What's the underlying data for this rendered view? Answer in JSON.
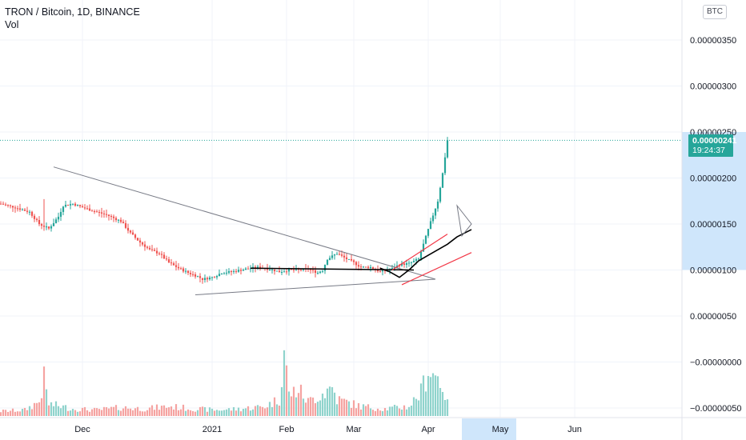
{
  "header": {
    "title": "TRON / Bitcoin, 1D, BINANCE",
    "volume_label": "Vol"
  },
  "currency_button": "BTC",
  "last_price": {
    "value": "0.00000241",
    "countdown": "19:24:37"
  },
  "colors": {
    "up": "#26a69a",
    "down": "#ef5350",
    "up_volume": "#8fd3cc",
    "down_volume": "#f5a3a1",
    "highlight": "#cfe6fb",
    "trendline": "#787b86",
    "channel": "#f23645",
    "curve": "#000000"
  },
  "chart_data": {
    "type": "candlestick",
    "title": "TRON / Bitcoin, 1D, BINANCE",
    "y_axis": {
      "ticks": [
        "0.00000350",
        "0.00000300",
        "0.00000250",
        "0.00000200",
        "0.00000150",
        "0.00000100",
        "0.00000050",
        "−0.00000000",
        "−0.00000050"
      ],
      "tick_values": [
        350,
        300,
        250,
        200,
        150,
        100,
        50,
        0,
        -50
      ],
      "unit_note": "values in units of 1e-8 BTC",
      "range": [
        -60,
        380
      ]
    },
    "x_axis": {
      "labels": [
        "Dec",
        "2021",
        "Feb",
        "Mar",
        "Apr",
        "May",
        "Jun"
      ],
      "label_days": [
        34,
        88,
        119,
        147,
        178,
        208,
        239
      ]
    },
    "last_price": 241,
    "series_close_anchors": [
      [
        0,
        172
      ],
      [
        6,
        168
      ],
      [
        12,
        163
      ],
      [
        16,
        150
      ],
      [
        20,
        145
      ],
      [
        24,
        158
      ],
      [
        26,
        170
      ],
      [
        30,
        172
      ],
      [
        34,
        168
      ],
      [
        40,
        163
      ],
      [
        44,
        160
      ],
      [
        50,
        153
      ],
      [
        54,
        140
      ],
      [
        58,
        130
      ],
      [
        62,
        122
      ],
      [
        66,
        118
      ],
      [
        70,
        108
      ],
      [
        74,
        102
      ],
      [
        78,
        97
      ],
      [
        82,
        93
      ],
      [
        84,
        90
      ],
      [
        88,
        92
      ],
      [
        92,
        97
      ],
      [
        96,
        98
      ],
      [
        100,
        100
      ],
      [
        104,
        102
      ],
      [
        108,
        103
      ],
      [
        112,
        101
      ],
      [
        116,
        98
      ],
      [
        120,
        100
      ],
      [
        124,
        100
      ],
      [
        128,
        101
      ],
      [
        132,
        97
      ],
      [
        134,
        100
      ],
      [
        136,
        112
      ],
      [
        140,
        118
      ],
      [
        144,
        112
      ],
      [
        147,
        108
      ],
      [
        150,
        103
      ],
      [
        154,
        103
      ],
      [
        158,
        98
      ],
      [
        162,
        100
      ],
      [
        166,
        106
      ],
      [
        170,
        107
      ],
      [
        174,
        112
      ],
      [
        176,
        128
      ],
      [
        179,
        152
      ],
      [
        182,
        175
      ],
      [
        184,
        205
      ],
      [
        186,
        241
      ]
    ],
    "volume_profile": [
      [
        0,
        4
      ],
      [
        10,
        5
      ],
      [
        16,
        12
      ],
      [
        18,
        30
      ],
      [
        20,
        10
      ],
      [
        30,
        6
      ],
      [
        40,
        5
      ],
      [
        50,
        7
      ],
      [
        60,
        6
      ],
      [
        70,
        8
      ],
      [
        80,
        6
      ],
      [
        90,
        5
      ],
      [
        100,
        6
      ],
      [
        110,
        8
      ],
      [
        116,
        14
      ],
      [
        118,
        55
      ],
      [
        120,
        18
      ],
      [
        124,
        22
      ],
      [
        128,
        12
      ],
      [
        135,
        20
      ],
      [
        138,
        24
      ],
      [
        140,
        14
      ],
      [
        150,
        8
      ],
      [
        160,
        6
      ],
      [
        170,
        8
      ],
      [
        175,
        20
      ],
      [
        178,
        40
      ],
      [
        180,
        36
      ],
      [
        182,
        32
      ],
      [
        184,
        26
      ],
      [
        186,
        10
      ]
    ],
    "annotations": [
      "descending trendline",
      "ascending support line",
      "horizontal resistance",
      "rising channel",
      "curved path"
    ]
  }
}
